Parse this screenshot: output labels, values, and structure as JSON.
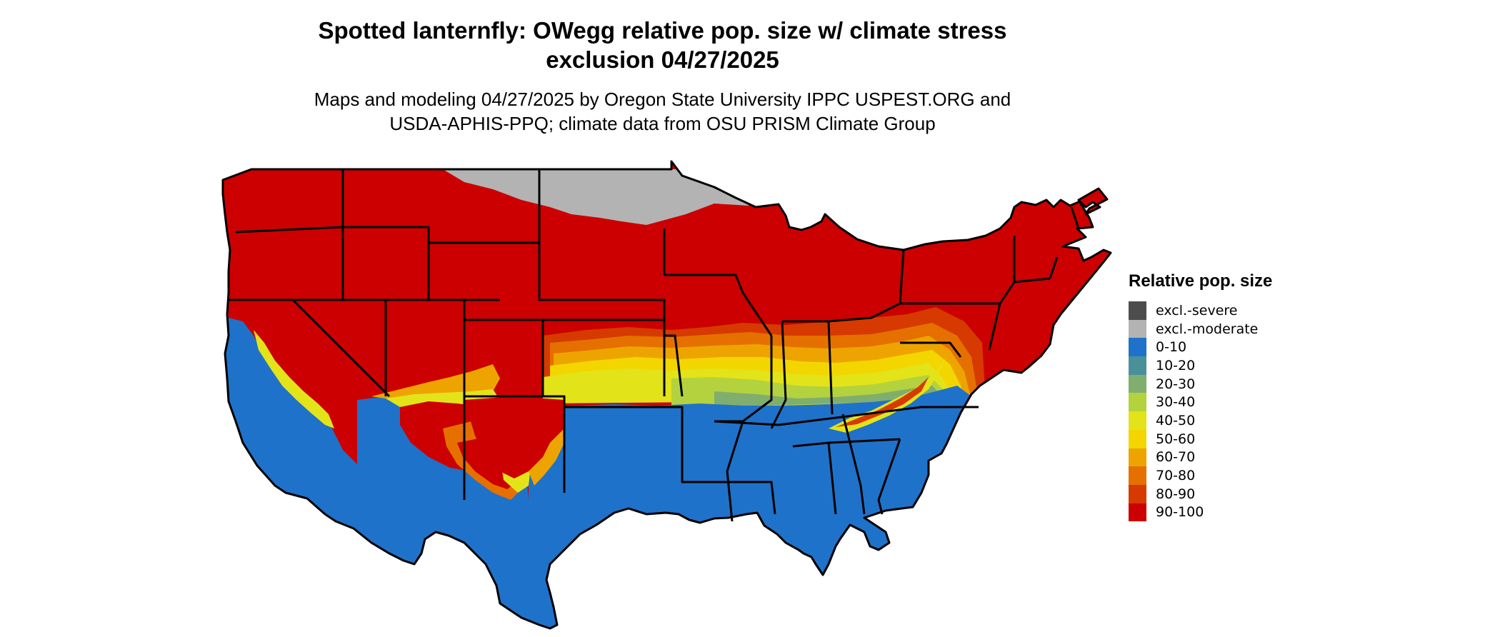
{
  "title_line1": "Spotted lanternfly: OWegg relative pop. size w/ climate stress",
  "title_line2": "exclusion 04/27/2025",
  "subtitle_line1": "Maps and modeling 04/27/2025 by Oregon State University IPPC USPEST.ORG and",
  "subtitle_line2": "USDA-APHIS-PPQ; climate data from OSU PRISM Climate Group",
  "legend": {
    "title": "Relative pop. size",
    "items": [
      {
        "label": "excl.-severe",
        "color": "#4d4d4d"
      },
      {
        "label": "excl.-moderate",
        "color": "#b3b3b3"
      },
      {
        "label": "0-10",
        "color": "#1f72c9"
      },
      {
        "label": "10-20",
        "color": "#4a9098"
      },
      {
        "label": "20-30",
        "color": "#7fae6e"
      },
      {
        "label": "30-40",
        "color": "#b3d23e"
      },
      {
        "label": "40-50",
        "color": "#e3e31a"
      },
      {
        "label": "50-60",
        "color": "#f3d600"
      },
      {
        "label": "60-70",
        "color": "#eea400"
      },
      {
        "label": "70-80",
        "color": "#e57000"
      },
      {
        "label": "80-90",
        "color": "#d63a00"
      },
      {
        "label": "90-100",
        "color": "#cc0000"
      }
    ]
  }
}
